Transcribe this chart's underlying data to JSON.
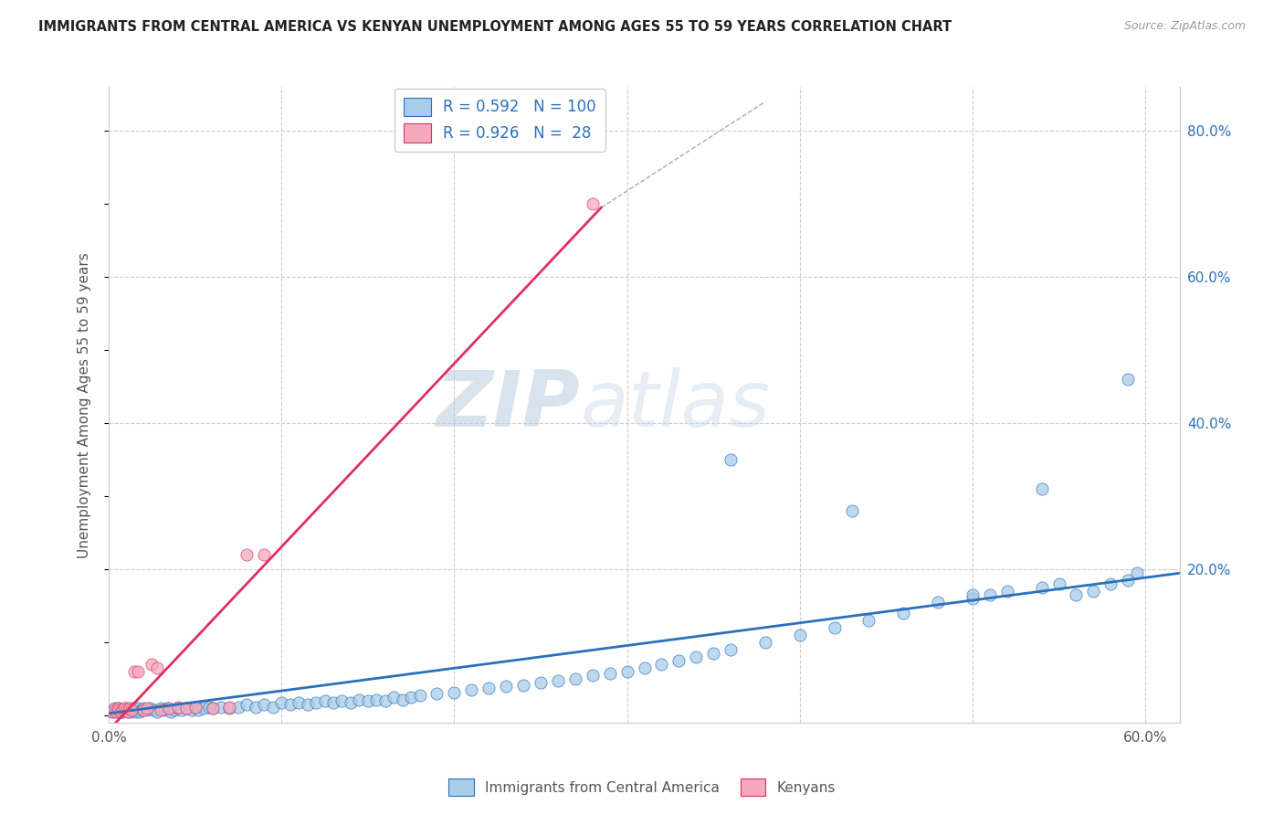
{
  "title": "IMMIGRANTS FROM CENTRAL AMERICA VS KENYAN UNEMPLOYMENT AMONG AGES 55 TO 59 YEARS CORRELATION CHART",
  "source": "Source: ZipAtlas.com",
  "ylabel": "Unemployment Among Ages 55 to 59 years",
  "xlim": [
    0.0,
    0.62
  ],
  "ylim": [
    -0.01,
    0.86
  ],
  "x_ticks": [
    0.0,
    0.1,
    0.2,
    0.3,
    0.4,
    0.5,
    0.6
  ],
  "x_tick_labels": [
    "0.0%",
    "",
    "",
    "",
    "",
    "",
    "60.0%"
  ],
  "y_ticks_right": [
    0.0,
    0.2,
    0.4,
    0.6,
    0.8
  ],
  "y_tick_labels_right": [
    "",
    "20.0%",
    "40.0%",
    "60.0%",
    "80.0%"
  ],
  "blue_color": "#A8CDE8",
  "pink_color": "#F4AABC",
  "blue_line_color": "#2B70BB",
  "pink_line_color": "#E03060",
  "text_color": "#2B70BB",
  "R_blue": 0.592,
  "N_blue": 100,
  "R_pink": 0.926,
  "N_pink": 28,
  "watermark_zip": "ZIP",
  "watermark_atlas": "atlas",
  "legend_label_blue": "Immigrants from Central America",
  "legend_label_pink": "Kenyans",
  "blue_scatter_x": [
    0.002,
    0.003,
    0.004,
    0.005,
    0.006,
    0.007,
    0.008,
    0.009,
    0.01,
    0.011,
    0.012,
    0.013,
    0.014,
    0.015,
    0.016,
    0.017,
    0.018,
    0.019,
    0.02,
    0.022,
    0.024,
    0.026,
    0.028,
    0.03,
    0.032,
    0.034,
    0.036,
    0.038,
    0.04,
    0.042,
    0.045,
    0.048,
    0.05,
    0.052,
    0.055,
    0.058,
    0.06,
    0.065,
    0.07,
    0.075,
    0.08,
    0.085,
    0.09,
    0.095,
    0.1,
    0.105,
    0.11,
    0.115,
    0.12,
    0.125,
    0.13,
    0.135,
    0.14,
    0.145,
    0.15,
    0.155,
    0.16,
    0.165,
    0.17,
    0.175,
    0.18,
    0.19,
    0.2,
    0.21,
    0.22,
    0.23,
    0.24,
    0.25,
    0.26,
    0.27,
    0.28,
    0.29,
    0.3,
    0.31,
    0.32,
    0.33,
    0.34,
    0.35,
    0.36,
    0.38,
    0.4,
    0.42,
    0.44,
    0.46,
    0.48,
    0.5,
    0.51,
    0.52,
    0.54,
    0.55,
    0.56,
    0.57,
    0.58,
    0.59,
    0.595,
    0.36,
    0.43,
    0.5,
    0.54,
    0.59
  ],
  "blue_scatter_y": [
    0.005,
    0.01,
    0.005,
    0.01,
    0.005,
    0.008,
    0.005,
    0.008,
    0.01,
    0.005,
    0.008,
    0.005,
    0.01,
    0.008,
    0.005,
    0.01,
    0.005,
    0.008,
    0.01,
    0.008,
    0.01,
    0.008,
    0.005,
    0.01,
    0.008,
    0.01,
    0.005,
    0.008,
    0.01,
    0.008,
    0.01,
    0.008,
    0.012,
    0.008,
    0.01,
    0.012,
    0.01,
    0.012,
    0.01,
    0.012,
    0.015,
    0.012,
    0.015,
    0.012,
    0.018,
    0.015,
    0.018,
    0.015,
    0.018,
    0.02,
    0.018,
    0.02,
    0.018,
    0.022,
    0.02,
    0.022,
    0.02,
    0.025,
    0.022,
    0.025,
    0.028,
    0.03,
    0.032,
    0.035,
    0.038,
    0.04,
    0.042,
    0.045,
    0.048,
    0.05,
    0.055,
    0.058,
    0.06,
    0.065,
    0.07,
    0.075,
    0.08,
    0.085,
    0.09,
    0.1,
    0.11,
    0.12,
    0.13,
    0.14,
    0.155,
    0.16,
    0.165,
    0.17,
    0.175,
    0.18,
    0.165,
    0.17,
    0.18,
    0.185,
    0.195,
    0.35,
    0.28,
    0.165,
    0.31,
    0.46
  ],
  "pink_scatter_x": [
    0.002,
    0.003,
    0.004,
    0.005,
    0.006,
    0.007,
    0.008,
    0.009,
    0.01,
    0.011,
    0.012,
    0.013,
    0.015,
    0.017,
    0.02,
    0.022,
    0.025,
    0.028,
    0.03,
    0.035,
    0.04,
    0.045,
    0.05,
    0.06,
    0.07,
    0.08,
    0.09,
    0.28
  ],
  "pink_scatter_y": [
    0.005,
    0.008,
    0.005,
    0.01,
    0.008,
    0.005,
    0.008,
    0.01,
    0.008,
    0.005,
    0.01,
    0.008,
    0.06,
    0.06,
    0.008,
    0.01,
    0.07,
    0.065,
    0.008,
    0.01,
    0.012,
    0.01,
    0.012,
    0.01,
    0.012,
    0.22,
    0.22,
    0.7
  ],
  "pink_line_x0": 0.0,
  "pink_line_y0": -0.02,
  "pink_line_x1": 0.285,
  "pink_line_y1": 0.695,
  "blue_line_x0": 0.0,
  "blue_line_y0": 0.003,
  "blue_line_x1": 0.62,
  "blue_line_y1": 0.195
}
